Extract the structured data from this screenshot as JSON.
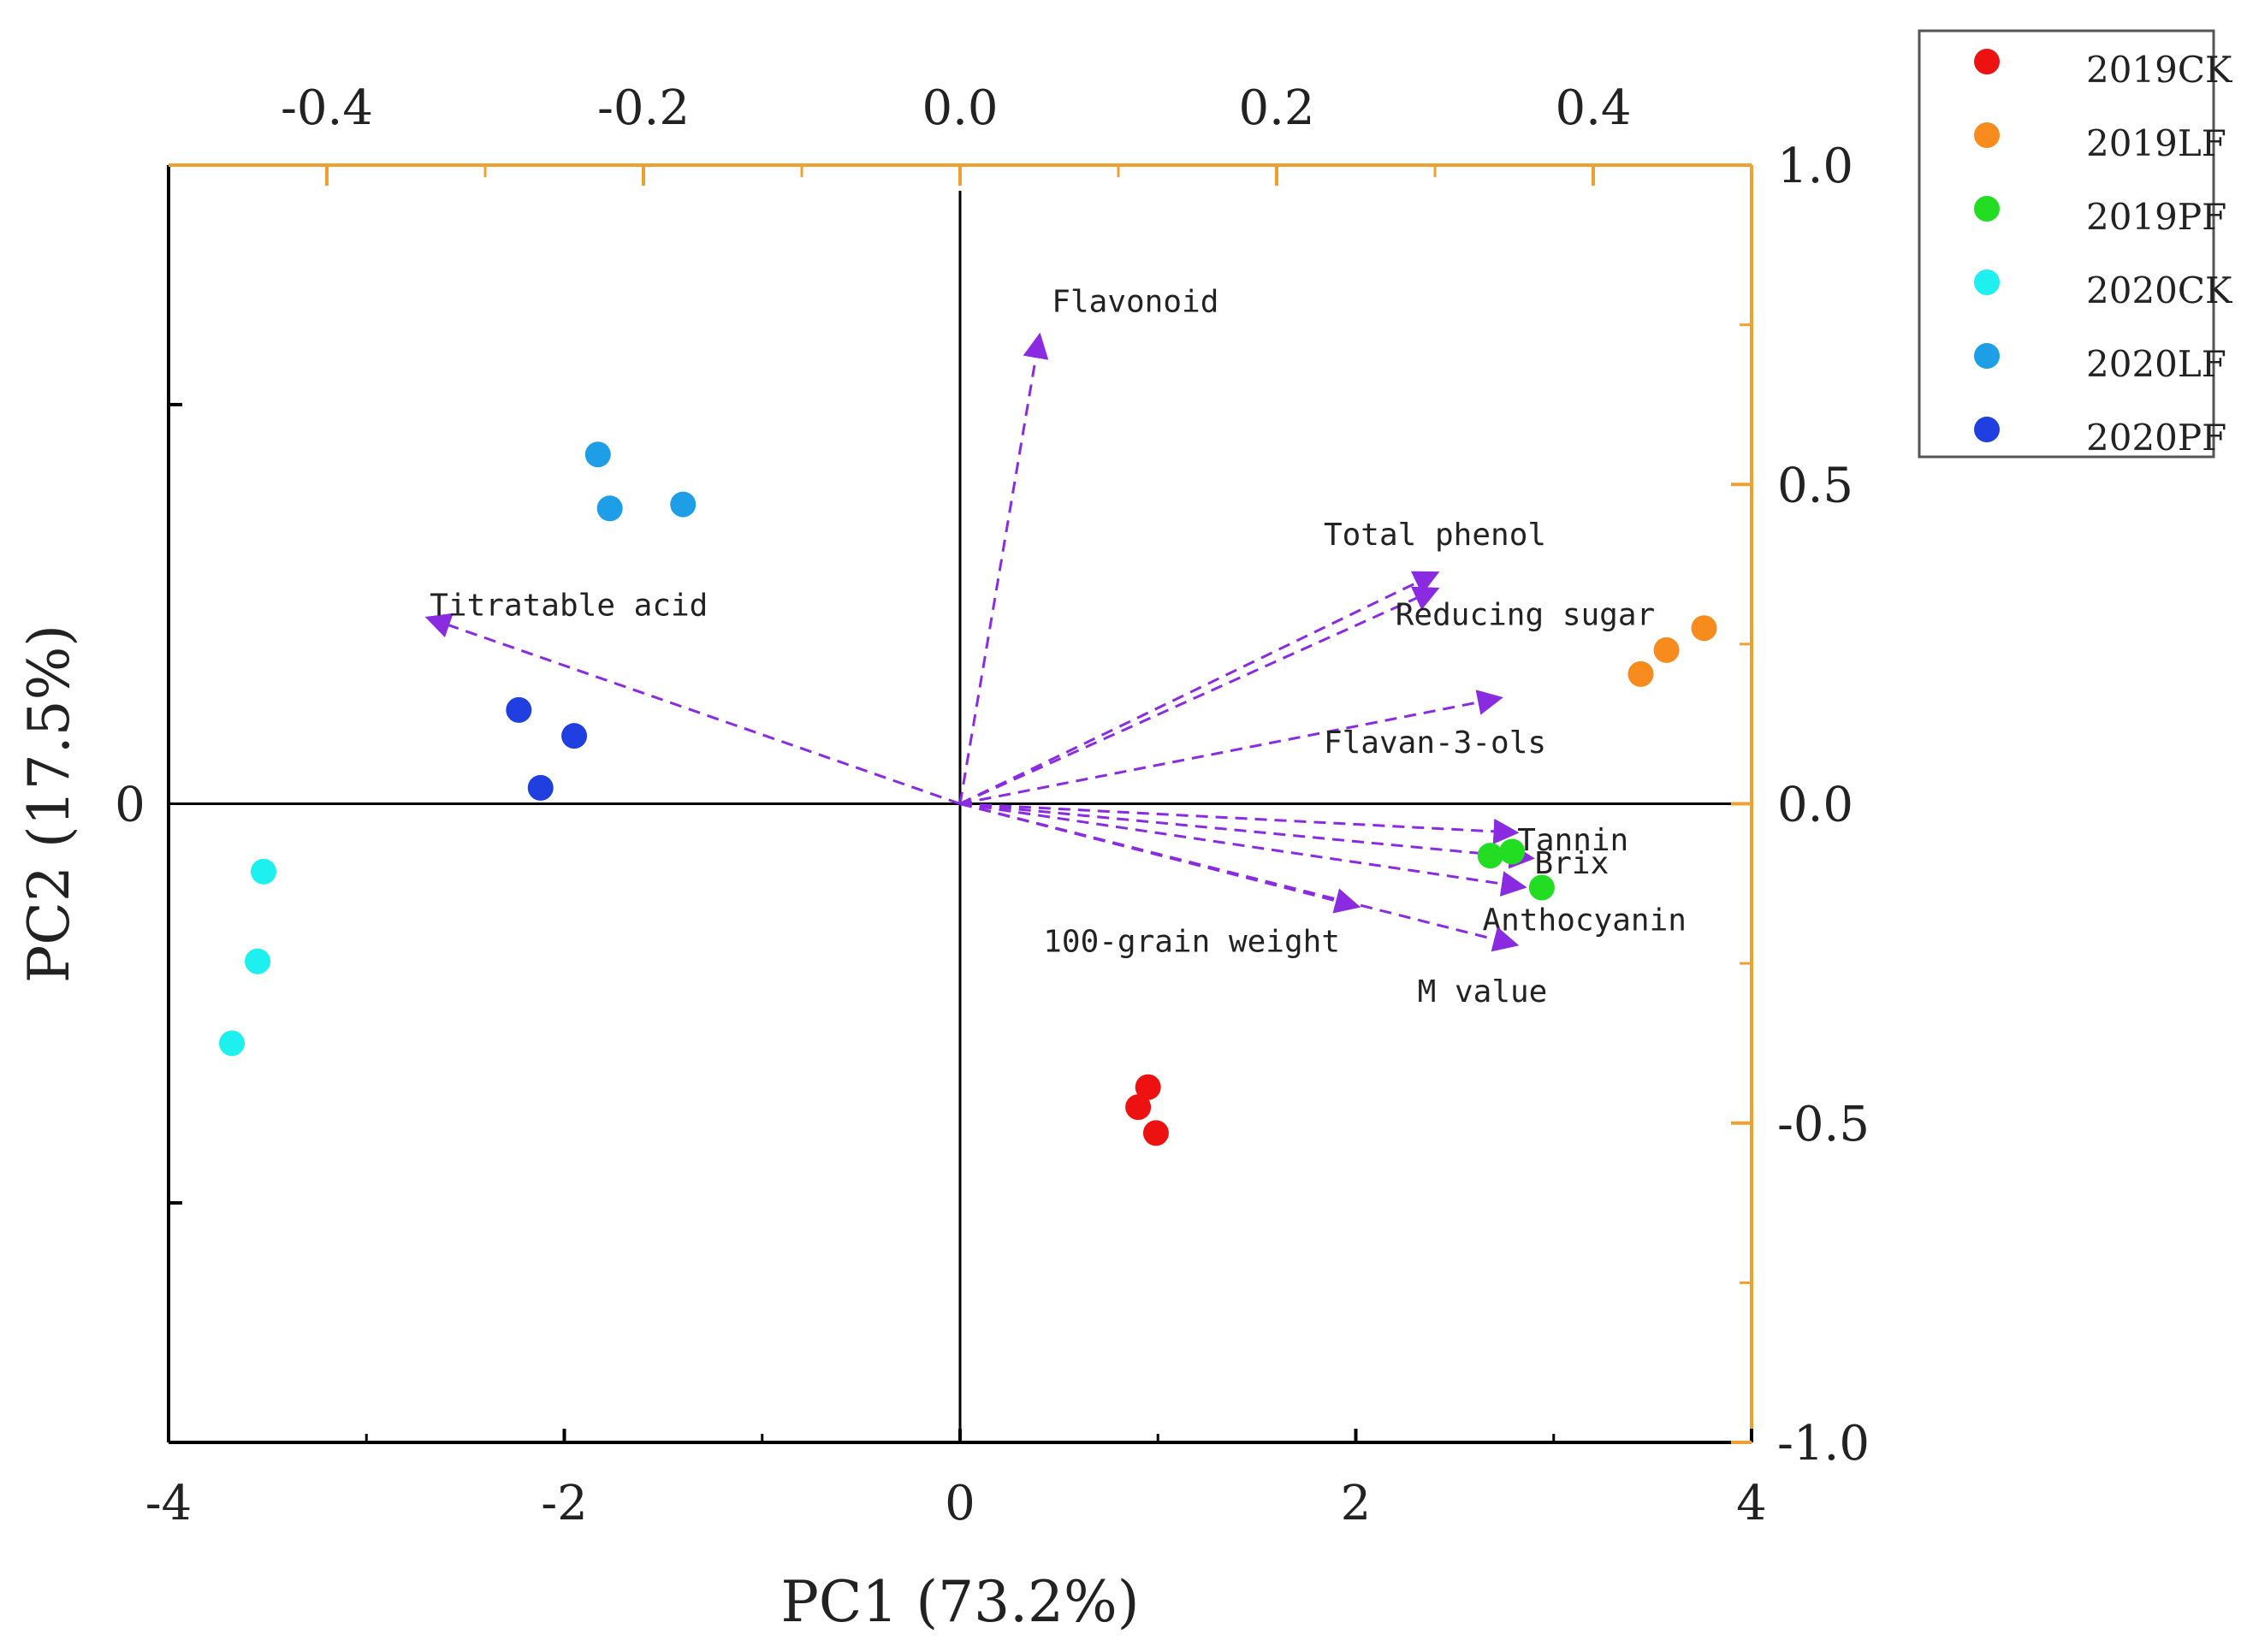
{
  "chart_data": {
    "type": "scatter",
    "title": "",
    "xlabel": "PC1 (73.2%)",
    "ylabel": "PC2 (17.5%)",
    "xlim": [
      -4,
      4
    ],
    "ylim": [
      -3.2,
      3.2
    ],
    "x_ticks": [
      {
        "value": -4,
        "label": "-4"
      },
      {
        "value": -2,
        "label": "-2"
      },
      {
        "value": 0,
        "label": "0"
      },
      {
        "value": 2,
        "label": "2"
      },
      {
        "value": 4,
        "label": "4"
      }
    ],
    "y_ticks": [
      {
        "value": 0,
        "label": "0"
      }
    ],
    "top_axis": {
      "lim": [
        -0.5,
        0.5
      ],
      "ticks": [
        {
          "value": -0.4,
          "label": "-0.4"
        },
        {
          "value": -0.2,
          "label": "-0.2"
        },
        {
          "value": 0.0,
          "label": "0.0"
        },
        {
          "value": 0.2,
          "label": "0.2"
        },
        {
          "value": 0.4,
          "label": "0.4"
        }
      ],
      "color": "#f0a030"
    },
    "right_axis": {
      "lim": [
        -1.0,
        1.0
      ],
      "ticks": [
        {
          "value": 1.0,
          "label": "1.0"
        },
        {
          "value": 0.5,
          "label": "0.5"
        },
        {
          "value": 0.0,
          "label": "0.0"
        },
        {
          "value": -0.5,
          "label": "-0.5"
        },
        {
          "value": -1.0,
          "label": "-1.0"
        }
      ],
      "color": "#f0a030"
    },
    "series": [
      {
        "name": "2019CK",
        "color": "#ee1111",
        "points": [
          [
            0.95,
            -1.42
          ],
          [
            0.9,
            -1.52
          ],
          [
            0.99,
            -1.65
          ]
        ]
      },
      {
        "name": "2019LF",
        "color": "#f78b1e",
        "points": [
          [
            3.76,
            0.88
          ],
          [
            3.57,
            0.77
          ],
          [
            3.44,
            0.65
          ]
        ]
      },
      {
        "name": "2019PF",
        "color": "#22dd22",
        "points": [
          [
            2.68,
            -0.26
          ],
          [
            2.79,
            -0.24
          ],
          [
            2.94,
            -0.42
          ]
        ]
      },
      {
        "name": "2020CK",
        "color": "#1ef0f0",
        "points": [
          [
            -3.52,
            -0.34
          ],
          [
            -3.55,
            -0.79
          ],
          [
            -3.68,
            -1.2
          ]
        ]
      },
      {
        "name": "2020LF",
        "color": "#1f9ee8",
        "points": [
          [
            -1.83,
            1.75
          ],
          [
            -1.77,
            1.48
          ],
          [
            -1.4,
            1.5
          ]
        ]
      },
      {
        "name": "2020PF",
        "color": "#1f3fe0",
        "points": [
          [
            -2.23,
            0.47
          ],
          [
            -1.95,
            0.34
          ],
          [
            -2.12,
            0.08
          ]
        ]
      }
    ],
    "loadings": {
      "color": "#8a2be2",
      "vectors": [
        {
          "name": "Flavonoid",
          "x": 0.05,
          "y": 0.73,
          "label_anchor": "start",
          "label_dx": 0.008,
          "label_dy": -0.04
        },
        {
          "name": "Titratable acid",
          "x": -0.335,
          "y": 0.29,
          "label_anchor": "start",
          "label_dx": 0.0,
          "label_dy": -0.005
        },
        {
          "name": "Total phenol",
          "x": 0.3,
          "y": 0.36,
          "label_anchor": "middle",
          "label_dx": 0.0,
          "label_dy": -0.045
        },
        {
          "name": "Reducing sugar",
          "x": 0.3,
          "y": 0.335,
          "label_anchor": "start",
          "label_dx": -0.025,
          "label_dy": 0.055
        },
        {
          "name": "Flavan-3-ols",
          "x": 0.34,
          "y": 0.165,
          "label_anchor": "middle",
          "label_dx": -0.04,
          "label_dy": 0.085
        },
        {
          "name": "Tannin",
          "x": 0.35,
          "y": -0.045,
          "label_anchor": "start",
          "label_dx": 0.002,
          "label_dy": 0.028
        },
        {
          "name": "Brix",
          "x": 0.36,
          "y": -0.085,
          "label_anchor": "start",
          "label_dx": 0.003,
          "label_dy": 0.024
        },
        {
          "name": "Anthocyanin",
          "x": 0.355,
          "y": -0.13,
          "label_anchor": "start",
          "label_dx": -0.025,
          "label_dy": 0.068
        },
        {
          "name": "100-grain weight",
          "x": 0.25,
          "y": -0.16,
          "label_anchor": "end",
          "label_dx": -0.01,
          "label_dy": 0.072
        },
        {
          "name": "M value",
          "x": 0.35,
          "y": -0.22,
          "label_anchor": "middle",
          "label_dx": -0.02,
          "label_dy": 0.09
        }
      ]
    },
    "legend": {
      "position": "top-right-outside",
      "entries": [
        "2019CK",
        "2019LF",
        "2019PF",
        "2020CK",
        "2020LF",
        "2020PF"
      ]
    },
    "grid": false
  }
}
